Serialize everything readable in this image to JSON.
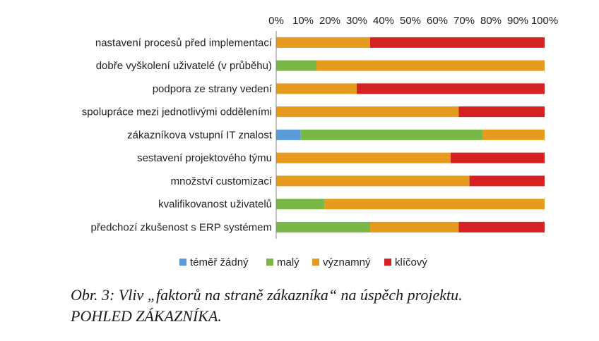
{
  "chart_data": {
    "type": "bar",
    "orientation": "horizontal",
    "stacked": "percent",
    "categories": [
      "nastavení procesů před implementací",
      "dobře vyškolení uživatelé (v průběhu)",
      "podpora ze strany vedení",
      "spolupráce mezi jednotlivými odděleními",
      "zákazníkova vstupní IT znalost",
      "sestavení projektového týmu",
      "množství customizací",
      "kvalifikovanost uživatelů",
      "předchozí zkušenost s ERP systémem"
    ],
    "series": [
      {
        "name": "téměř žádný",
        "color": "#5b9bd5",
        "values": [
          0,
          0,
          0,
          0,
          9,
          0,
          0,
          0,
          0
        ]
      },
      {
        "name": "malý",
        "color": "#7ab648",
        "values": [
          0,
          15,
          0,
          0,
          68,
          0,
          0,
          18,
          35
        ]
      },
      {
        "name": "významný",
        "color": "#e69b1e",
        "values": [
          35,
          85,
          30,
          68,
          23,
          65,
          72,
          82,
          33
        ]
      },
      {
        "name": "klíčový",
        "color": "#d42222",
        "values": [
          65,
          0,
          70,
          32,
          0,
          35,
          28,
          0,
          32
        ]
      }
    ],
    "xlim": [
      0,
      100
    ],
    "xticks": [
      "0%",
      "10%",
      "20%",
      "30%",
      "40%",
      "50%",
      "60%",
      "70%",
      "80%",
      "90%",
      "100%"
    ],
    "xaxis_position": "top",
    "grid": false,
    "legend_position": "bottom"
  },
  "caption": {
    "line1": "Obr. 3: Vliv „faktorů na straně zákazníka“ na úspěch projektu.",
    "line2": "POHLED ZÁKAZNÍKA."
  }
}
